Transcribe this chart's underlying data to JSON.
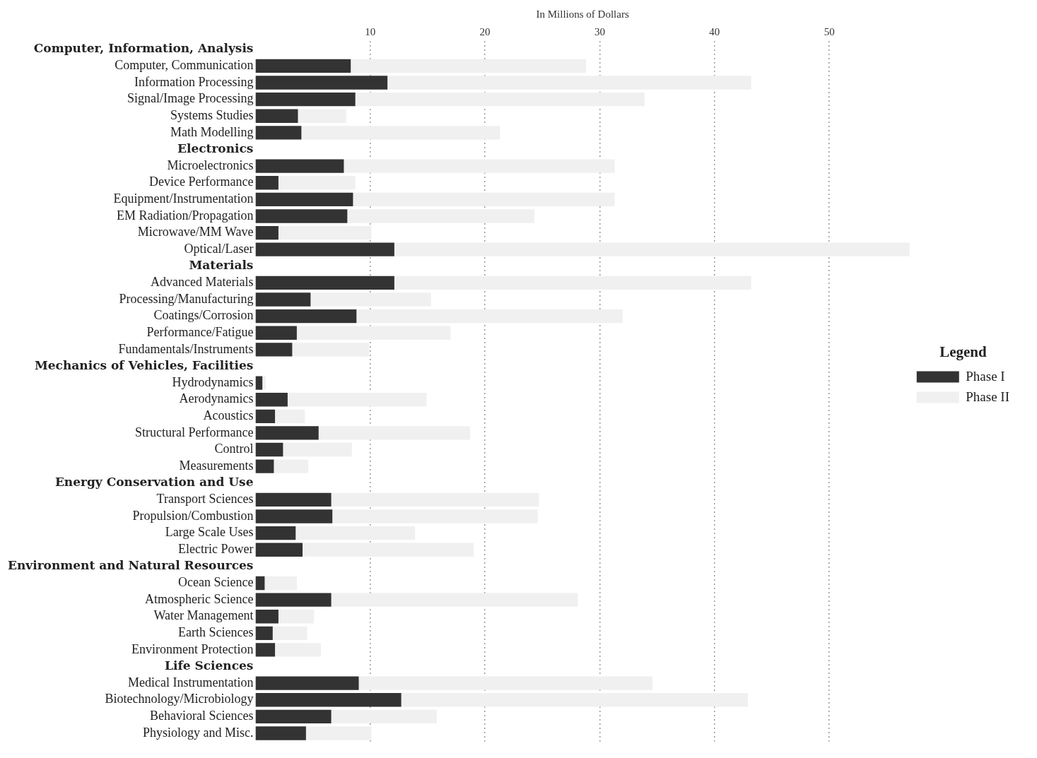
{
  "chart_data": {
    "type": "bar",
    "orientation": "horizontal",
    "stacked": true,
    "xlabel": "In Millions of Dollars",
    "legend_title": "Legend",
    "categories": [
      "Computer, Information, Analysis",
      "Computer, Communication",
      "Information Processing",
      "Signal/Image Processing",
      "Systems Studies",
      "Math Modelling",
      "Electronics",
      "Microelectronics",
      "Device Performance",
      "Equipment/Instrumentation",
      "EM Radiation/Propagation",
      "Microwave/MM Wave",
      "Optical/Laser",
      "Materials",
      "Advanced Materials",
      "Processing/Manufacturing",
      "Coatings/Corrosion",
      "Performance/Fatigue",
      "Fundamentals/Instruments",
      "Mechanics of Vehicles, Facilities",
      "Hydrodynamics",
      "Aerodynamics",
      "Acoustics",
      "Structural Performance",
      "Control",
      "Measurements",
      "Energy Conservation and Use",
      "Transport Sciences",
      "Propulsion/Combustion",
      "Large Scale Uses",
      "Electric Power",
      "Environment and Natural Resources",
      "Ocean Science",
      "Atmospheric Science",
      "Water Management",
      "Earth Sciences",
      "Environment Protection",
      "Life Sciences",
      "Medical Instrumentation",
      "Biotechnology/Microbiology",
      "Behavioral Sciences",
      "Physiology and Misc."
    ],
    "series": [
      {
        "name": "Phase I",
        "color": "#333333",
        "values": [
          null,
          8.3,
          11.5,
          8.7,
          3.7,
          4.0,
          null,
          7.7,
          2.0,
          8.5,
          8.0,
          2.0,
          12.1,
          null,
          12.1,
          4.8,
          8.8,
          3.6,
          3.2,
          null,
          0.6,
          2.8,
          1.7,
          5.5,
          2.4,
          1.6,
          null,
          6.6,
          6.7,
          3.5,
          4.1,
          null,
          0.8,
          6.6,
          2.0,
          1.5,
          1.7,
          null,
          9.0,
          12.7,
          6.6,
          4.4
        ]
      },
      {
        "name": "Phase II",
        "color": "#f0f0f0",
        "values": [
          null,
          20.5,
          31.7,
          25.2,
          4.2,
          17.3,
          null,
          23.6,
          6.7,
          22.8,
          16.3,
          8.1,
          45.0,
          null,
          31.1,
          10.5,
          23.2,
          13.4,
          6.7,
          null,
          0.3,
          12.1,
          2.6,
          13.2,
          6.0,
          3.0,
          null,
          18.1,
          17.9,
          10.4,
          14.9,
          null,
          2.8,
          21.5,
          3.1,
          3.0,
          4.0,
          null,
          25.6,
          30.2,
          9.2,
          5.7
        ]
      }
    ],
    "xlim": [
      0,
      57
    ],
    "xticks": [
      10,
      20,
      30,
      40,
      50
    ],
    "grid": "x",
    "line_style": "dotted",
    "legend": "right"
  }
}
